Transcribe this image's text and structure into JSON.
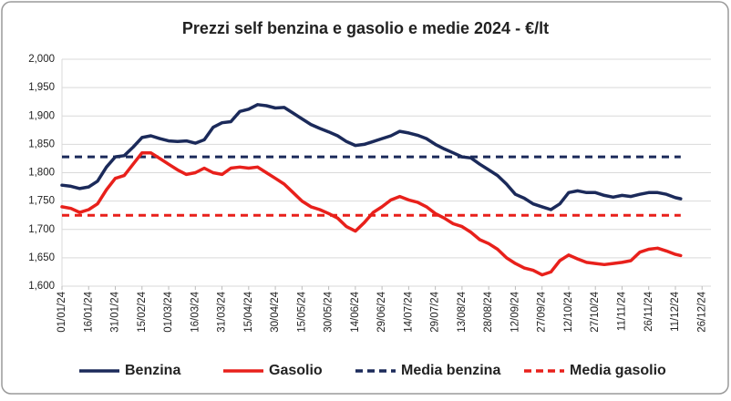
{
  "chart_data": {
    "type": "line",
    "title": "Prezzi self benzina e gasolio e medie 2024 - €/lt",
    "x": [
      "01/01/24",
      "06/01/24",
      "11/01/24",
      "16/01/24",
      "21/01/24",
      "26/01/24",
      "31/01/24",
      "05/02/24",
      "10/02/24",
      "15/02/24",
      "20/02/24",
      "25/02/24",
      "01/03/24",
      "06/03/24",
      "11/03/24",
      "16/03/24",
      "21/03/24",
      "26/03/24",
      "31/03/24",
      "05/04/24",
      "10/04/24",
      "15/04/24",
      "20/04/24",
      "25/04/24",
      "30/04/24",
      "05/05/24",
      "10/05/24",
      "15/05/24",
      "20/05/24",
      "25/05/24",
      "30/05/24",
      "04/06/24",
      "09/06/24",
      "14/06/24",
      "19/06/24",
      "24/06/24",
      "29/06/24",
      "04/07/24",
      "09/07/24",
      "14/07/24",
      "19/07/24",
      "24/07/24",
      "29/07/24",
      "03/08/24",
      "08/08/24",
      "13/08/24",
      "18/08/24",
      "23/08/24",
      "28/08/24",
      "02/09/24",
      "07/09/24",
      "12/09/24",
      "17/09/24",
      "22/09/24",
      "27/09/24",
      "02/10/24",
      "07/10/24",
      "12/10/24",
      "17/10/24",
      "22/10/24",
      "27/10/24",
      "01/11/24",
      "06/11/24",
      "11/11/24",
      "16/11/24",
      "21/11/24",
      "26/11/24",
      "01/12/24",
      "06/12/24",
      "11/12/24",
      "14/12/24"
    ],
    "series": [
      {
        "name": "Benzina",
        "color": "#1b2a5a",
        "values": [
          1.778,
          1.776,
          1.772,
          1.775,
          1.785,
          1.81,
          1.828,
          1.83,
          1.845,
          1.862,
          1.865,
          1.86,
          1.856,
          1.855,
          1.856,
          1.852,
          1.858,
          1.88,
          1.888,
          1.89,
          1.908,
          1.912,
          1.92,
          1.918,
          1.914,
          1.915,
          1.905,
          1.895,
          1.885,
          1.878,
          1.872,
          1.865,
          1.855,
          1.848,
          1.85,
          1.855,
          1.86,
          1.865,
          1.873,
          1.87,
          1.866,
          1.86,
          1.85,
          1.842,
          1.835,
          1.828,
          1.826,
          1.815,
          1.805,
          1.795,
          1.78,
          1.762,
          1.755,
          1.745,
          1.74,
          1.735,
          1.745,
          1.765,
          1.768,
          1.765,
          1.765,
          1.76,
          1.757,
          1.76,
          1.758,
          1.762,
          1.765,
          1.765,
          1.762,
          1.756,
          1.754
        ]
      },
      {
        "name": "Gasolio",
        "color": "#e8201b",
        "values": [
          1.74,
          1.737,
          1.73,
          1.735,
          1.745,
          1.77,
          1.79,
          1.795,
          1.815,
          1.835,
          1.835,
          1.825,
          1.815,
          1.805,
          1.797,
          1.8,
          1.808,
          1.8,
          1.797,
          1.808,
          1.81,
          1.808,
          1.81,
          1.8,
          1.79,
          1.78,
          1.765,
          1.75,
          1.74,
          1.735,
          1.728,
          1.72,
          1.705,
          1.697,
          1.712,
          1.73,
          1.74,
          1.752,
          1.758,
          1.752,
          1.748,
          1.74,
          1.728,
          1.72,
          1.71,
          1.705,
          1.695,
          1.682,
          1.675,
          1.665,
          1.65,
          1.64,
          1.632,
          1.628,
          1.62,
          1.625,
          1.645,
          1.655,
          1.648,
          1.642,
          1.64,
          1.638,
          1.64,
          1.642,
          1.645,
          1.66,
          1.665,
          1.667,
          1.662,
          1.656,
          1.654
        ]
      }
    ],
    "means": [
      {
        "name": "Media benzina",
        "color": "#1b2a5a",
        "value": 1.828
      },
      {
        "name": "Media gasolio",
        "color": "#e8201b",
        "value": 1.725
      }
    ],
    "xlim": [
      "01/01/24",
      "31/12/24"
    ],
    "xticks": [
      "01/01/24",
      "16/01/24",
      "31/01/24",
      "15/02/24",
      "01/03/24",
      "16/03/24",
      "31/03/24",
      "15/04/24",
      "30/04/24",
      "15/05/24",
      "30/05/24",
      "14/06/24",
      "29/06/24",
      "14/07/24",
      "29/07/24",
      "13/08/24",
      "28/08/24",
      "12/09/24",
      "27/09/24",
      "12/10/24",
      "27/10/24",
      "11/11/24",
      "26/11/24",
      "11/12/24",
      "26/12/24"
    ],
    "ylim": [
      1.6,
      2.0
    ],
    "yticks": [
      {
        "value": 1.6,
        "label": "1,600"
      },
      {
        "value": 1.65,
        "label": "1,650"
      },
      {
        "value": 1.7,
        "label": "1,700"
      },
      {
        "value": 1.75,
        "label": "1,750"
      },
      {
        "value": 1.8,
        "label": "1,800"
      },
      {
        "value": 1.85,
        "label": "1,850"
      },
      {
        "value": 1.9,
        "label": "1,900"
      },
      {
        "value": 1.95,
        "label": "1,950"
      },
      {
        "value": 2.0,
        "label": "2,000"
      }
    ],
    "grid": true,
    "legend": "bottom"
  }
}
